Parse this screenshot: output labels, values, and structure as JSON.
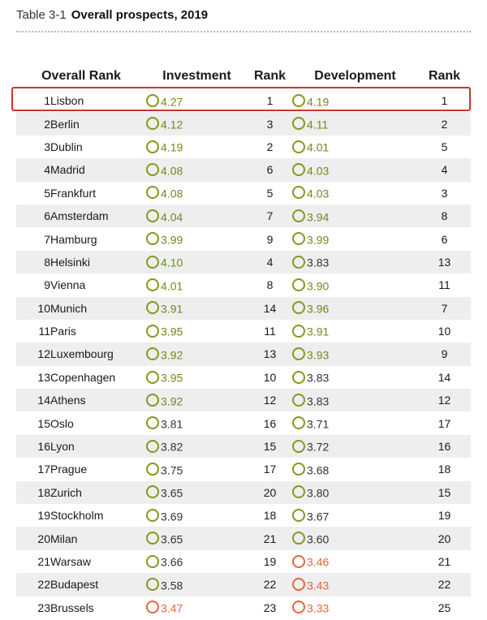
{
  "header": {
    "table_number": "Table 3-1",
    "table_title": "Overall prospects, 2019"
  },
  "columns": {
    "overall_rank": "Overall Rank",
    "investment": "Investment",
    "inv_rank": "Rank",
    "development": "Development",
    "dev_rank": "Rank"
  },
  "colors": {
    "ring_green": "#7f9a1f",
    "ring_orange": "#e2673a",
    "highlight_red": "#c9352a",
    "stripe": "#eeeeee"
  },
  "rows": [
    {
      "rank": "1",
      "city": "Lisbon",
      "investment": "4.27",
      "inv_rank": "1",
      "development": "4.19",
      "dev_rank": "1",
      "inv_color": "green",
      "dev_color": "green",
      "highlighted": true
    },
    {
      "rank": "2",
      "city": "Berlin",
      "investment": "4.12",
      "inv_rank": "3",
      "development": "4.11",
      "dev_rank": "2",
      "inv_color": "green",
      "dev_color": "green"
    },
    {
      "rank": "3",
      "city": "Dublin",
      "investment": "4.19",
      "inv_rank": "2",
      "development": "4.01",
      "dev_rank": "5",
      "inv_color": "green",
      "dev_color": "green"
    },
    {
      "rank": "4",
      "city": "Madrid",
      "investment": "4.08",
      "inv_rank": "6",
      "development": "4.03",
      "dev_rank": "4",
      "inv_color": "green",
      "dev_color": "green"
    },
    {
      "rank": "5",
      "city": "Frankfurt",
      "investment": "4.08",
      "inv_rank": "5",
      "development": "4.03",
      "dev_rank": "3",
      "inv_color": "green",
      "dev_color": "green"
    },
    {
      "rank": "6",
      "city": "Amsterdam",
      "investment": "4.04",
      "inv_rank": "7",
      "development": "3.94",
      "dev_rank": "8",
      "inv_color": "green",
      "dev_color": "green"
    },
    {
      "rank": "7",
      "city": "Hamburg",
      "investment": "3.99",
      "inv_rank": "9",
      "development": "3.99",
      "dev_rank": "6",
      "inv_color": "green",
      "dev_color": "green"
    },
    {
      "rank": "8",
      "city": "Helsinki",
      "investment": "4.10",
      "inv_rank": "4",
      "development": "3.83",
      "dev_rank": "13",
      "inv_color": "green",
      "dev_color": "green"
    },
    {
      "rank": "9",
      "city": "Vienna",
      "investment": "4.01",
      "inv_rank": "8",
      "development": "3.90",
      "dev_rank": "11",
      "inv_color": "green",
      "dev_color": "green"
    },
    {
      "rank": "10",
      "city": "Munich",
      "investment": "3.91",
      "inv_rank": "14",
      "development": "3.96",
      "dev_rank": "7",
      "inv_color": "green",
      "dev_color": "green"
    },
    {
      "rank": "11",
      "city": "Paris",
      "investment": "3.95",
      "inv_rank": "11",
      "development": "3.91",
      "dev_rank": "10",
      "inv_color": "green",
      "dev_color": "green"
    },
    {
      "rank": "12",
      "city": "Luxembourg",
      "investment": "3.92",
      "inv_rank": "13",
      "development": "3.93",
      "dev_rank": "9",
      "inv_color": "green",
      "dev_color": "green"
    },
    {
      "rank": "13",
      "city": "Copenhagen",
      "investment": "3.95",
      "inv_rank": "10",
      "development": "3.83",
      "dev_rank": "14",
      "inv_color": "green",
      "dev_color": "green"
    },
    {
      "rank": "14",
      "city": "Athens",
      "investment": "3.92",
      "inv_rank": "12",
      "development": "3.83",
      "dev_rank": "12",
      "inv_color": "green",
      "dev_color": "green"
    },
    {
      "rank": "15",
      "city": "Oslo",
      "investment": "3.81",
      "inv_rank": "16",
      "development": "3.71",
      "dev_rank": "17",
      "inv_color": "green",
      "dev_color": "green"
    },
    {
      "rank": "16",
      "city": "Lyon",
      "investment": "3.82",
      "inv_rank": "15",
      "development": "3.72",
      "dev_rank": "16",
      "inv_color": "green",
      "dev_color": "green"
    },
    {
      "rank": "17",
      "city": "Prague",
      "investment": "3.75",
      "inv_rank": "17",
      "development": "3.68",
      "dev_rank": "18",
      "inv_color": "green",
      "dev_color": "green"
    },
    {
      "rank": "18",
      "city": "Zurich",
      "investment": "3.65",
      "inv_rank": "20",
      "development": "3.80",
      "dev_rank": "15",
      "inv_color": "green",
      "dev_color": "green"
    },
    {
      "rank": "19",
      "city": "Stockholm",
      "investment": "3.69",
      "inv_rank": "18",
      "development": "3.67",
      "dev_rank": "19",
      "inv_color": "green",
      "dev_color": "green"
    },
    {
      "rank": "20",
      "city": "Milan",
      "investment": "3.65",
      "inv_rank": "21",
      "development": "3.60",
      "dev_rank": "20",
      "inv_color": "green",
      "dev_color": "green"
    },
    {
      "rank": "21",
      "city": "Warsaw",
      "investment": "3.66",
      "inv_rank": "19",
      "development": "3.46",
      "dev_rank": "21",
      "inv_color": "green",
      "dev_color": "orange"
    },
    {
      "rank": "22",
      "city": "Budapest",
      "investment": "3.58",
      "inv_rank": "22",
      "development": "3.43",
      "dev_rank": "22",
      "inv_color": "green",
      "dev_color": "orange"
    },
    {
      "rank": "23",
      "city": "Brussels",
      "investment": "3.47",
      "inv_rank": "23",
      "development": "3.33",
      "dev_rank": "25",
      "inv_color": "orange",
      "dev_color": "orange"
    }
  ]
}
